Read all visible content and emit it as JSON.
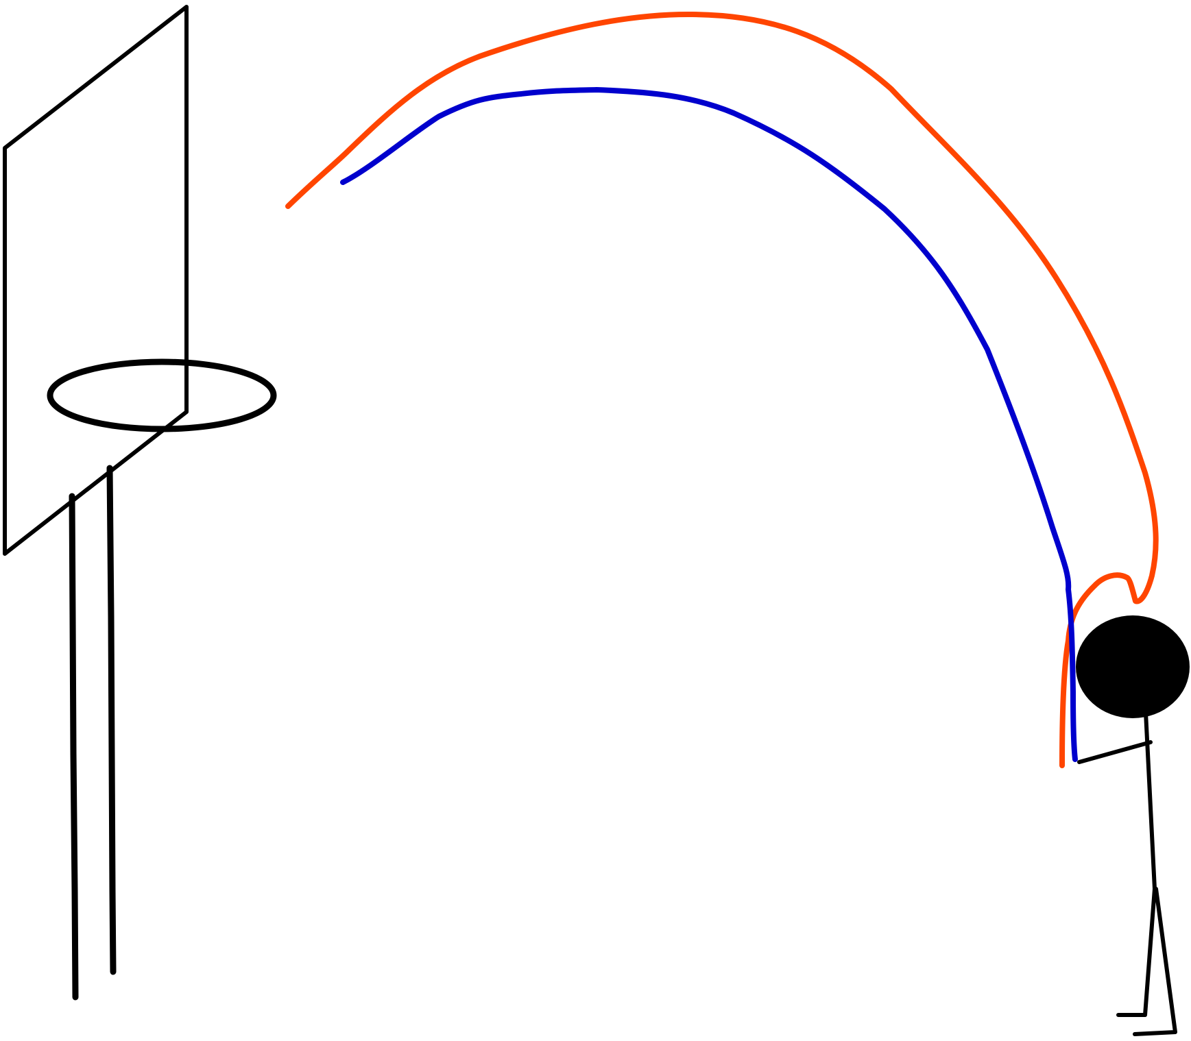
{
  "colors": {
    "background": "#ffffff",
    "ink": "#000000",
    "orange_trajectory": "#ff4500",
    "blue_trajectory": "#0000cd"
  },
  "scene": {
    "basketball_hoop": {
      "parts": [
        "backboard",
        "rim",
        "pole"
      ]
    },
    "shooter": {
      "parts": [
        "head",
        "torso",
        "arm",
        "legs",
        "feet"
      ]
    },
    "trajectories": [
      {
        "color_key": "orange_trajectory",
        "arc": "higher"
      },
      {
        "color_key": "blue_trajectory",
        "arc": "lower"
      }
    ]
  }
}
